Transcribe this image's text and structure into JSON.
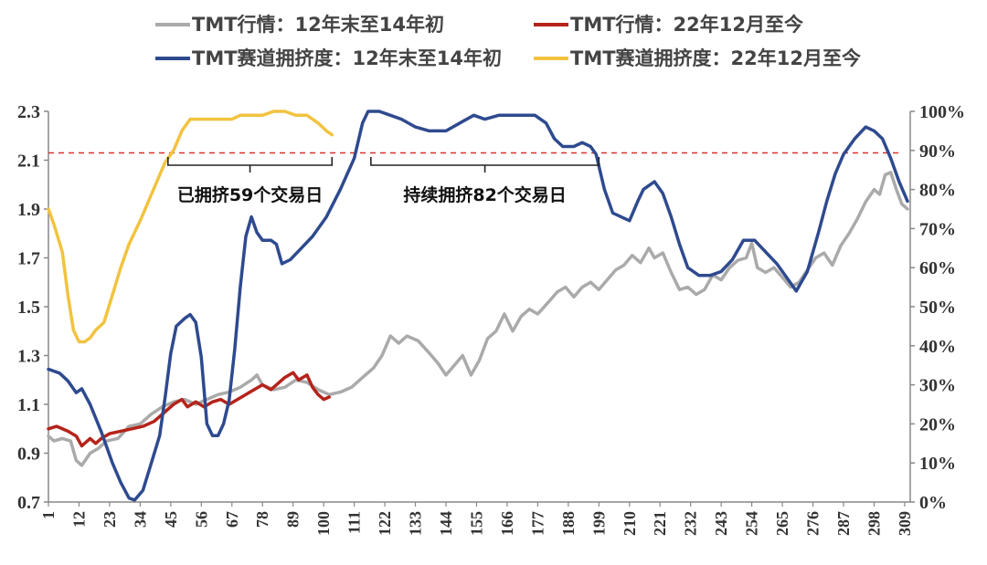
{
  "chart_data": {
    "type": "line",
    "legend": [
      {
        "label": "TMT行情：12年末至14年初",
        "color": "#aaaaaa"
      },
      {
        "label": "TMT行情：22年12月至今",
        "color": "#b5231a"
      },
      {
        "label": "TMT赛道拥挤度：12年末至14年初",
        "color": "#2e4a8f"
      },
      {
        "label": "TMT赛道拥挤度：22年12月至今",
        "color": "#f2c340"
      }
    ],
    "y_left": {
      "ticks": [
        "0.7",
        "0.9",
        "1.1",
        "1.3",
        "1.5",
        "1.7",
        "1.9",
        "2.1",
        "2.3"
      ],
      "range": [
        0.7,
        2.3
      ]
    },
    "y_right": {
      "ticks": [
        "0%",
        "10%",
        "20%",
        "30%",
        "40%",
        "50%",
        "60%",
        "70%",
        "80%",
        "90%",
        "100%"
      ],
      "range": [
        0,
        100
      ]
    },
    "x": {
      "ticks": [
        "1",
        "12",
        "23",
        "34",
        "45",
        "56",
        "67",
        "78",
        "89",
        "100",
        "111",
        "122",
        "133",
        "144",
        "155",
        "166",
        "177",
        "188",
        "199",
        "210",
        "221",
        "232",
        "243",
        "254",
        "265",
        "276",
        "287",
        "298",
        "309"
      ],
      "range": [
        1,
        311
      ]
    },
    "reference_line": {
      "value": 2.13,
      "axis": "left",
      "color": "#d9312b",
      "style": "dashed"
    },
    "annotations": [
      {
        "text": "已拥挤59个交易日",
        "from_x": 44,
        "to_x": 103
      },
      {
        "text": "持续拥挤82个交易日",
        "from_x": 117,
        "to_x": 199
      }
    ],
    "series": [
      {
        "name": "TMT行情：12年末至14年初",
        "axis": "left",
        "color": "#aaaaaa",
        "width": 3.5,
        "points": [
          [
            1,
            0.97
          ],
          [
            3,
            0.95
          ],
          [
            6,
            0.96
          ],
          [
            9,
            0.95
          ],
          [
            11,
            0.87
          ],
          [
            13,
            0.85
          ],
          [
            16,
            0.9
          ],
          [
            19,
            0.92
          ],
          [
            22,
            0.95
          ],
          [
            26,
            0.96
          ],
          [
            30,
            1.01
          ],
          [
            34,
            1.02
          ],
          [
            38,
            1.06
          ],
          [
            42,
            1.09
          ],
          [
            46,
            1.11
          ],
          [
            50,
            1.12
          ],
          [
            54,
            1.1
          ],
          [
            58,
            1.12
          ],
          [
            62,
            1.14
          ],
          [
            66,
            1.15
          ],
          [
            70,
            1.17
          ],
          [
            74,
            1.2
          ],
          [
            76,
            1.22
          ],
          [
            78,
            1.18
          ],
          [
            82,
            1.16
          ],
          [
            86,
            1.17
          ],
          [
            90,
            1.2
          ],
          [
            94,
            1.19
          ],
          [
            98,
            1.16
          ],
          [
            102,
            1.14
          ],
          [
            106,
            1.15
          ],
          [
            110,
            1.17
          ],
          [
            114,
            1.21
          ],
          [
            118,
            1.25
          ],
          [
            121,
            1.3
          ],
          [
            124,
            1.38
          ],
          [
            127,
            1.35
          ],
          [
            130,
            1.38
          ],
          [
            134,
            1.36
          ],
          [
            138,
            1.31
          ],
          [
            141,
            1.27
          ],
          [
            144,
            1.22
          ],
          [
            147,
            1.26
          ],
          [
            150,
            1.3
          ],
          [
            153,
            1.22
          ],
          [
            156,
            1.28
          ],
          [
            159,
            1.37
          ],
          [
            162,
            1.4
          ],
          [
            165,
            1.47
          ],
          [
            168,
            1.4
          ],
          [
            171,
            1.46
          ],
          [
            174,
            1.49
          ],
          [
            177,
            1.47
          ],
          [
            181,
            1.52
          ],
          [
            184,
            1.56
          ],
          [
            187,
            1.58
          ],
          [
            190,
            1.54
          ],
          [
            193,
            1.58
          ],
          [
            196,
            1.6
          ],
          [
            199,
            1.57
          ],
          [
            202,
            1.61
          ],
          [
            205,
            1.65
          ],
          [
            208,
            1.67
          ],
          [
            211,
            1.71
          ],
          [
            214,
            1.68
          ],
          [
            217,
            1.74
          ],
          [
            219,
            1.7
          ],
          [
            222,
            1.72
          ],
          [
            225,
            1.64
          ],
          [
            228,
            1.57
          ],
          [
            231,
            1.58
          ],
          [
            234,
            1.55
          ],
          [
            237,
            1.57
          ],
          [
            240,
            1.63
          ],
          [
            243,
            1.61
          ],
          [
            246,
            1.66
          ],
          [
            249,
            1.69
          ],
          [
            252,
            1.7
          ],
          [
            254,
            1.76
          ],
          [
            256,
            1.66
          ],
          [
            259,
            1.64
          ],
          [
            262,
            1.66
          ],
          [
            265,
            1.62
          ],
          [
            268,
            1.58
          ],
          [
            271,
            1.6
          ],
          [
            274,
            1.65
          ],
          [
            277,
            1.7
          ],
          [
            280,
            1.72
          ],
          [
            283,
            1.67
          ],
          [
            286,
            1.75
          ],
          [
            289,
            1.8
          ],
          [
            292,
            1.86
          ],
          [
            295,
            1.93
          ],
          [
            298,
            1.98
          ],
          [
            300,
            1.96
          ],
          [
            302,
            2.04
          ],
          [
            304,
            2.05
          ],
          [
            306,
            1.98
          ],
          [
            308,
            1.92
          ],
          [
            310,
            1.9
          ]
        ]
      },
      {
        "name": "TMT行情：22年12月至今",
        "axis": "left",
        "color": "#b5231a",
        "width": 3.5,
        "points": [
          [
            1,
            1.0
          ],
          [
            4,
            1.01
          ],
          [
            8,
            0.99
          ],
          [
            11,
            0.97
          ],
          [
            13,
            0.93
          ],
          [
            16,
            0.96
          ],
          [
            18,
            0.94
          ],
          [
            20,
            0.96
          ],
          [
            23,
            0.98
          ],
          [
            27,
            0.99
          ],
          [
            31,
            1.0
          ],
          [
            35,
            1.01
          ],
          [
            39,
            1.03
          ],
          [
            43,
            1.07
          ],
          [
            46,
            1.1
          ],
          [
            49,
            1.12
          ],
          [
            51,
            1.09
          ],
          [
            54,
            1.11
          ],
          [
            57,
            1.09
          ],
          [
            60,
            1.11
          ],
          [
            63,
            1.12
          ],
          [
            66,
            1.1
          ],
          [
            69,
            1.12
          ],
          [
            72,
            1.14
          ],
          [
            75,
            1.16
          ],
          [
            78,
            1.18
          ],
          [
            81,
            1.16
          ],
          [
            84,
            1.19
          ],
          [
            86,
            1.21
          ],
          [
            89,
            1.23
          ],
          [
            91,
            1.2
          ],
          [
            94,
            1.22
          ],
          [
            96,
            1.17
          ],
          [
            98,
            1.14
          ],
          [
            100,
            1.12
          ],
          [
            102,
            1.13
          ]
        ]
      },
      {
        "name": "TMT赛道拥挤度：12年末至14年初",
        "axis": "right",
        "color": "#2e4a8f",
        "width": 3.5,
        "points": [
          [
            1,
            34
          ],
          [
            5,
            33
          ],
          [
            8,
            31
          ],
          [
            11,
            28
          ],
          [
            13,
            29
          ],
          [
            16,
            25
          ],
          [
            20,
            18
          ],
          [
            24,
            10
          ],
          [
            27,
            5
          ],
          [
            30,
            1
          ],
          [
            32,
            0.5
          ],
          [
            35,
            3
          ],
          [
            38,
            10
          ],
          [
            41,
            17
          ],
          [
            43,
            27
          ],
          [
            45,
            38
          ],
          [
            47,
            45
          ],
          [
            50,
            47
          ],
          [
            52,
            48
          ],
          [
            54,
            46
          ],
          [
            56,
            37
          ],
          [
            58,
            20
          ],
          [
            60,
            17
          ],
          [
            62,
            17
          ],
          [
            64,
            20
          ],
          [
            66,
            26
          ],
          [
            68,
            39
          ],
          [
            70,
            55
          ],
          [
            72,
            68
          ],
          [
            74,
            73
          ],
          [
            76,
            69
          ],
          [
            78,
            67
          ],
          [
            81,
            67
          ],
          [
            83,
            66
          ],
          [
            85,
            61
          ],
          [
            88,
            62
          ],
          [
            92,
            65
          ],
          [
            96,
            68
          ],
          [
            101,
            73
          ],
          [
            106,
            80
          ],
          [
            111,
            88
          ],
          [
            114,
            97
          ],
          [
            116,
            100
          ],
          [
            120,
            100
          ],
          [
            124,
            99
          ],
          [
            128,
            98
          ],
          [
            133,
            96
          ],
          [
            138,
            95
          ],
          [
            144,
            95
          ],
          [
            149,
            97
          ],
          [
            154,
            99
          ],
          [
            158,
            98
          ],
          [
            163,
            99
          ],
          [
            168,
            99
          ],
          [
            172,
            99
          ],
          [
            176,
            99
          ],
          [
            180,
            97
          ],
          [
            183,
            93
          ],
          [
            186,
            91
          ],
          [
            190,
            91
          ],
          [
            193,
            92
          ],
          [
            196,
            91
          ],
          [
            198,
            89
          ],
          [
            201,
            80
          ],
          [
            204,
            74
          ],
          [
            207,
            73
          ],
          [
            210,
            72
          ],
          [
            213,
            77
          ],
          [
            215,
            80
          ],
          [
            219,
            82
          ],
          [
            222,
            79
          ],
          [
            225,
            73
          ],
          [
            228,
            66
          ],
          [
            231,
            60
          ],
          [
            235,
            58
          ],
          [
            239,
            58
          ],
          [
            243,
            59
          ],
          [
            247,
            62
          ],
          [
            251,
            67
          ],
          [
            255,
            67
          ],
          [
            259,
            64
          ],
          [
            263,
            61
          ],
          [
            267,
            57
          ],
          [
            270,
            54
          ],
          [
            274,
            59
          ],
          [
            278,
            69
          ],
          [
            281,
            77
          ],
          [
            284,
            84
          ],
          [
            287,
            89
          ],
          [
            291,
            93
          ],
          [
            295,
            96
          ],
          [
            298,
            95
          ],
          [
            301,
            93
          ],
          [
            304,
            88
          ],
          [
            307,
            82
          ],
          [
            310,
            77
          ]
        ]
      },
      {
        "name": "TMT赛道拥挤度：22年12月至今",
        "axis": "right",
        "color": "#f2c340",
        "width": 3.5,
        "points": [
          [
            1,
            75
          ],
          [
            3,
            71
          ],
          [
            6,
            64
          ],
          [
            8,
            53
          ],
          [
            10,
            44
          ],
          [
            12,
            41
          ],
          [
            14,
            41
          ],
          [
            16,
            42
          ],
          [
            18,
            44
          ],
          [
            21,
            46
          ],
          [
            24,
            53
          ],
          [
            27,
            60
          ],
          [
            30,
            66
          ],
          [
            34,
            72
          ],
          [
            37,
            77
          ],
          [
            40,
            82
          ],
          [
            43,
            87
          ],
          [
            46,
            90
          ],
          [
            49,
            95
          ],
          [
            52,
            98
          ],
          [
            56,
            98
          ],
          [
            60,
            98
          ],
          [
            64,
            98
          ],
          [
            67,
            98
          ],
          [
            70,
            99
          ],
          [
            74,
            99
          ],
          [
            78,
            99
          ],
          [
            82,
            100
          ],
          [
            86,
            100
          ],
          [
            90,
            99
          ],
          [
            94,
            99
          ],
          [
            98,
            97
          ],
          [
            101,
            95
          ],
          [
            103,
            94
          ]
        ]
      }
    ]
  }
}
